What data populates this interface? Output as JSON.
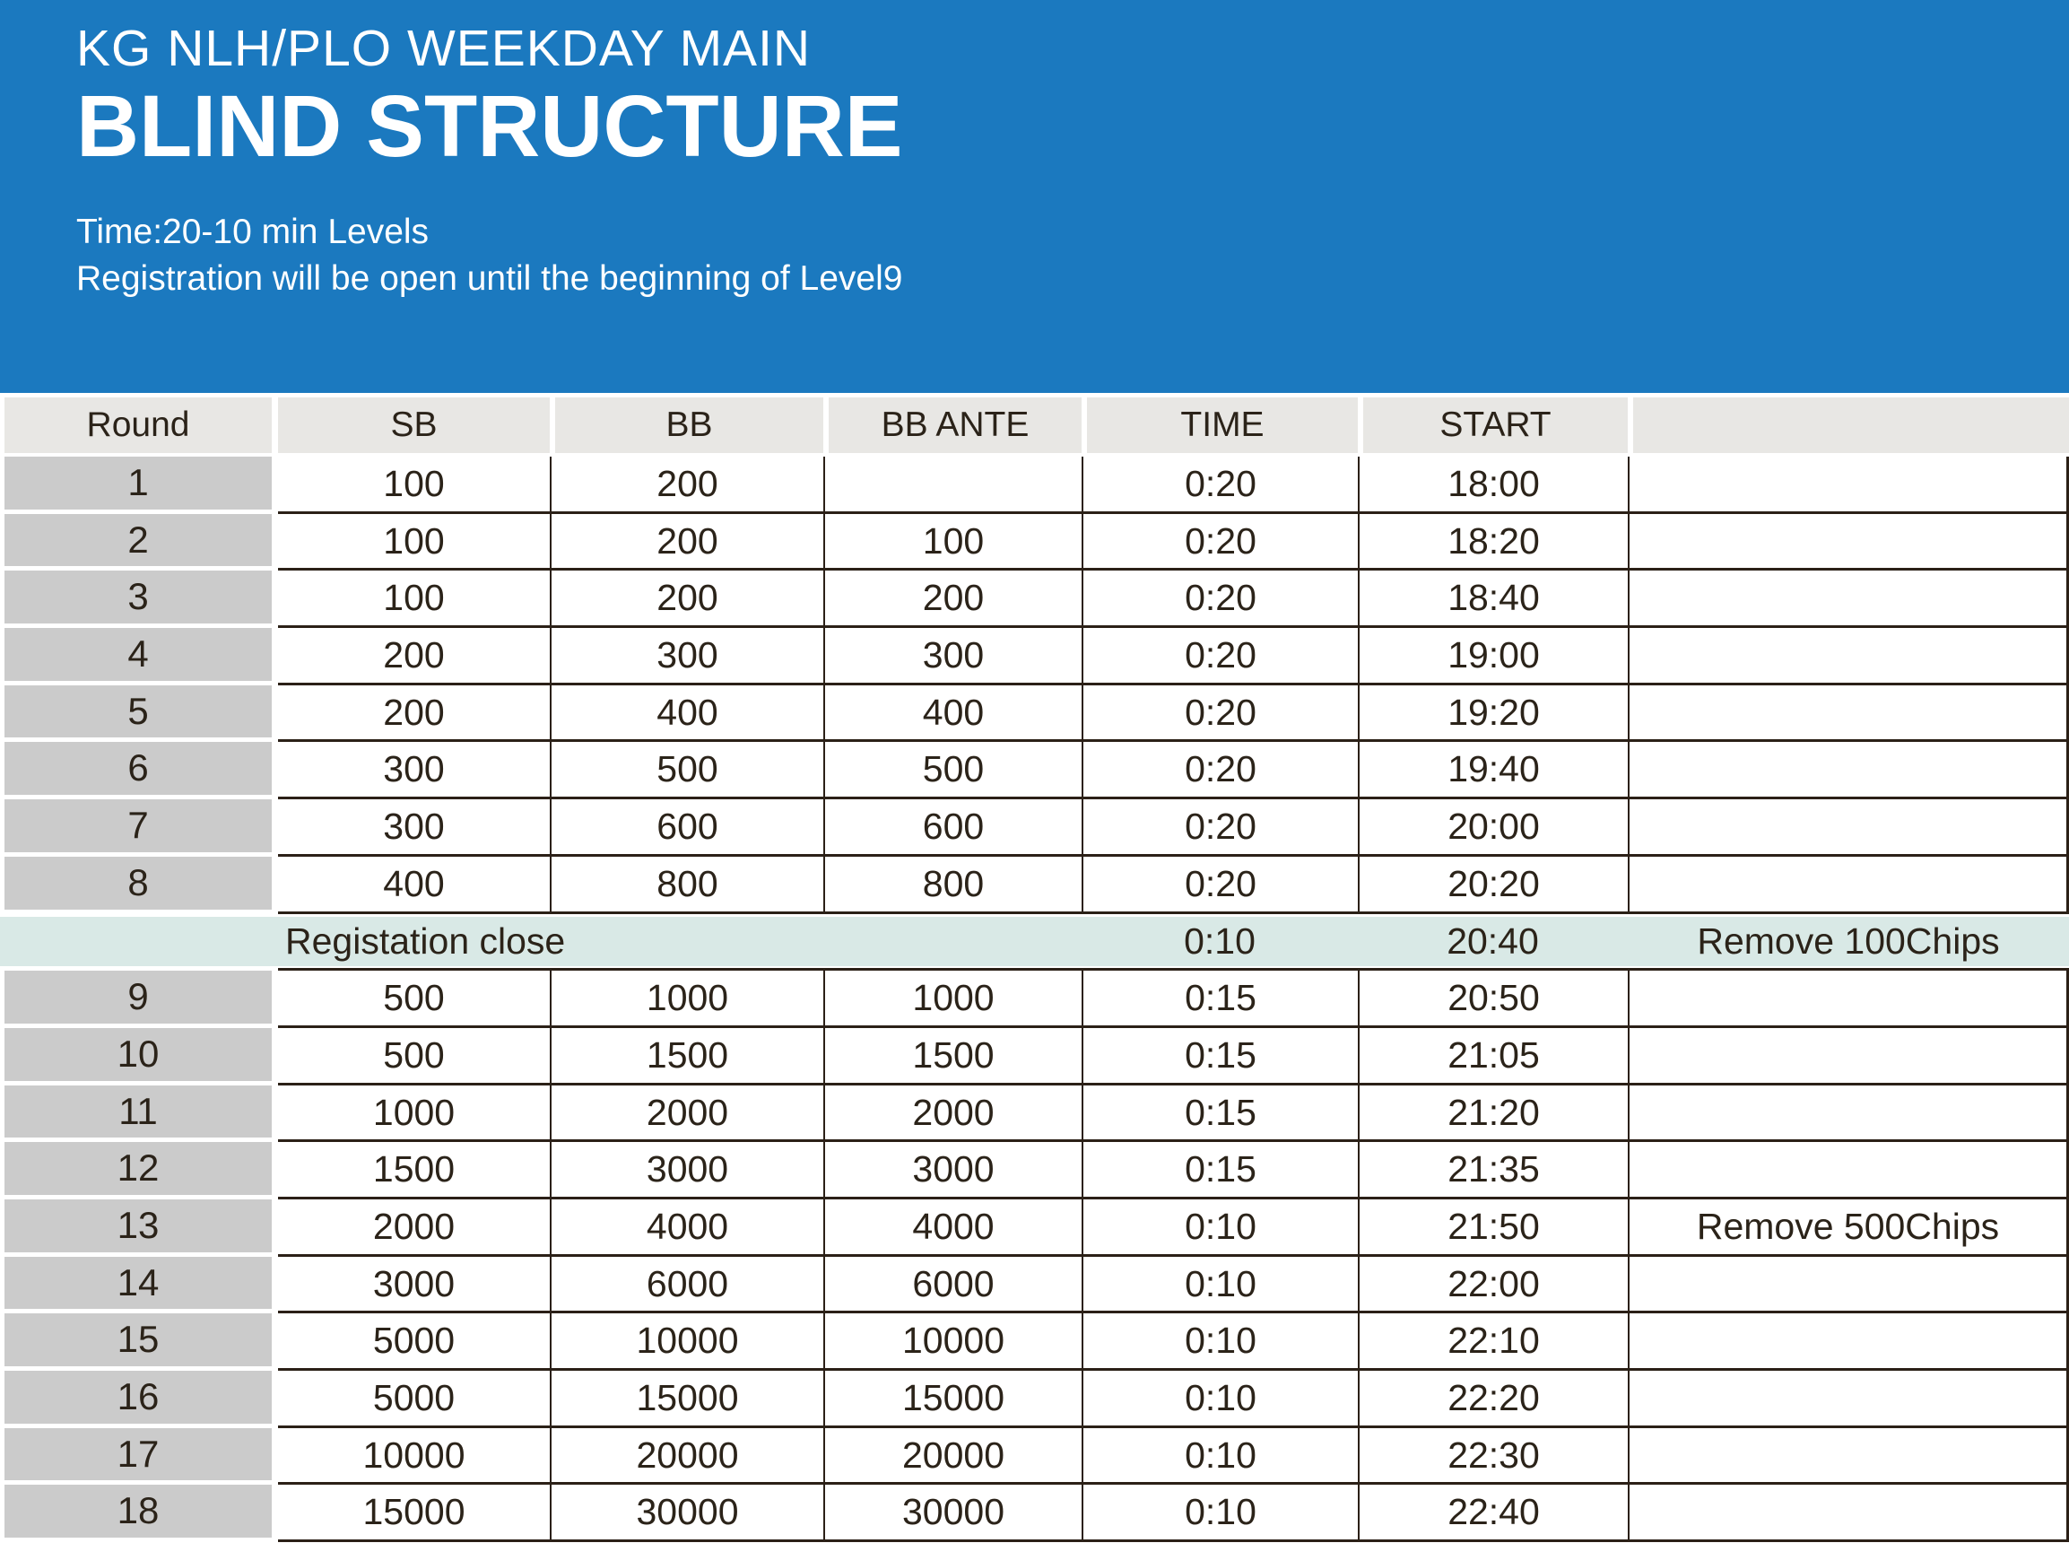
{
  "banner": {
    "event_title": "KG NLH/PLO WEEKDAY MAIN",
    "page_title": "BLIND STRUCTURE",
    "time_note": "Time:20-10 min Levels",
    "registration_note": "Registration will be open until the beginning of Level9"
  },
  "colors": {
    "banner_blue": "#1b79bf",
    "header_cell_gray": "#e8e7e4",
    "round_column_gray": "#cbcbcb",
    "break_row_teal": "#d9e9e6",
    "grid_line": "#2b2017",
    "text_dark": "#2b2319"
  },
  "table": {
    "columns": [
      "Round",
      "SB",
      "BB",
      "BB ANTE",
      "TIME",
      "START",
      ""
    ],
    "rows": [
      {
        "round": "1",
        "sb": "100",
        "bb": "200",
        "bb_ante": "",
        "time": "0:20",
        "start": "18:00",
        "note": ""
      },
      {
        "round": "2",
        "sb": "100",
        "bb": "200",
        "bb_ante": "100",
        "time": "0:20",
        "start": "18:20",
        "note": ""
      },
      {
        "round": "3",
        "sb": "100",
        "bb": "200",
        "bb_ante": "200",
        "time": "0:20",
        "start": "18:40",
        "note": ""
      },
      {
        "round": "4",
        "sb": "200",
        "bb": "300",
        "bb_ante": "300",
        "time": "0:20",
        "start": "19:00",
        "note": ""
      },
      {
        "round": "5",
        "sb": "200",
        "bb": "400",
        "bb_ante": "400",
        "time": "0:20",
        "start": "19:20",
        "note": ""
      },
      {
        "round": "6",
        "sb": "300",
        "bb": "500",
        "bb_ante": "500",
        "time": "0:20",
        "start": "19:40",
        "note": ""
      },
      {
        "round": "7",
        "sb": "300",
        "bb": "600",
        "bb_ante": "600",
        "time": "0:20",
        "start": "20:00",
        "note": ""
      },
      {
        "round": "8",
        "sb": "400",
        "bb": "800",
        "bb_ante": "800",
        "time": "0:20",
        "start": "20:20",
        "note": ""
      },
      {
        "type": "break",
        "label": "Registation close",
        "time": "0:10",
        "start": "20:40",
        "note": "Remove 100Chips"
      },
      {
        "round": "9",
        "sb": "500",
        "bb": "1000",
        "bb_ante": "1000",
        "time": "0:15",
        "start": "20:50",
        "note": ""
      },
      {
        "round": "10",
        "sb": "500",
        "bb": "1500",
        "bb_ante": "1500",
        "time": "0:15",
        "start": "21:05",
        "note": ""
      },
      {
        "round": "11",
        "sb": "1000",
        "bb": "2000",
        "bb_ante": "2000",
        "time": "0:15",
        "start": "21:20",
        "note": ""
      },
      {
        "round": "12",
        "sb": "1500",
        "bb": "3000",
        "bb_ante": "3000",
        "time": "0:15",
        "start": "21:35",
        "note": ""
      },
      {
        "round": "13",
        "sb": "2000",
        "bb": "4000",
        "bb_ante": "4000",
        "time": "0:10",
        "start": "21:50",
        "note": "Remove 500Chips"
      },
      {
        "round": "14",
        "sb": "3000",
        "bb": "6000",
        "bb_ante": "6000",
        "time": "0:10",
        "start": "22:00",
        "note": ""
      },
      {
        "round": "15",
        "sb": "5000",
        "bb": "10000",
        "bb_ante": "10000",
        "time": "0:10",
        "start": "22:10",
        "note": ""
      },
      {
        "round": "16",
        "sb": "5000",
        "bb": "15000",
        "bb_ante": "15000",
        "time": "0:10",
        "start": "22:20",
        "note": ""
      },
      {
        "round": "17",
        "sb": "10000",
        "bb": "20000",
        "bb_ante": "20000",
        "time": "0:10",
        "start": "22:30",
        "note": ""
      },
      {
        "round": "18",
        "sb": "15000",
        "bb": "30000",
        "bb_ante": "30000",
        "time": "0:10",
        "start": "22:40",
        "note": ""
      }
    ]
  }
}
